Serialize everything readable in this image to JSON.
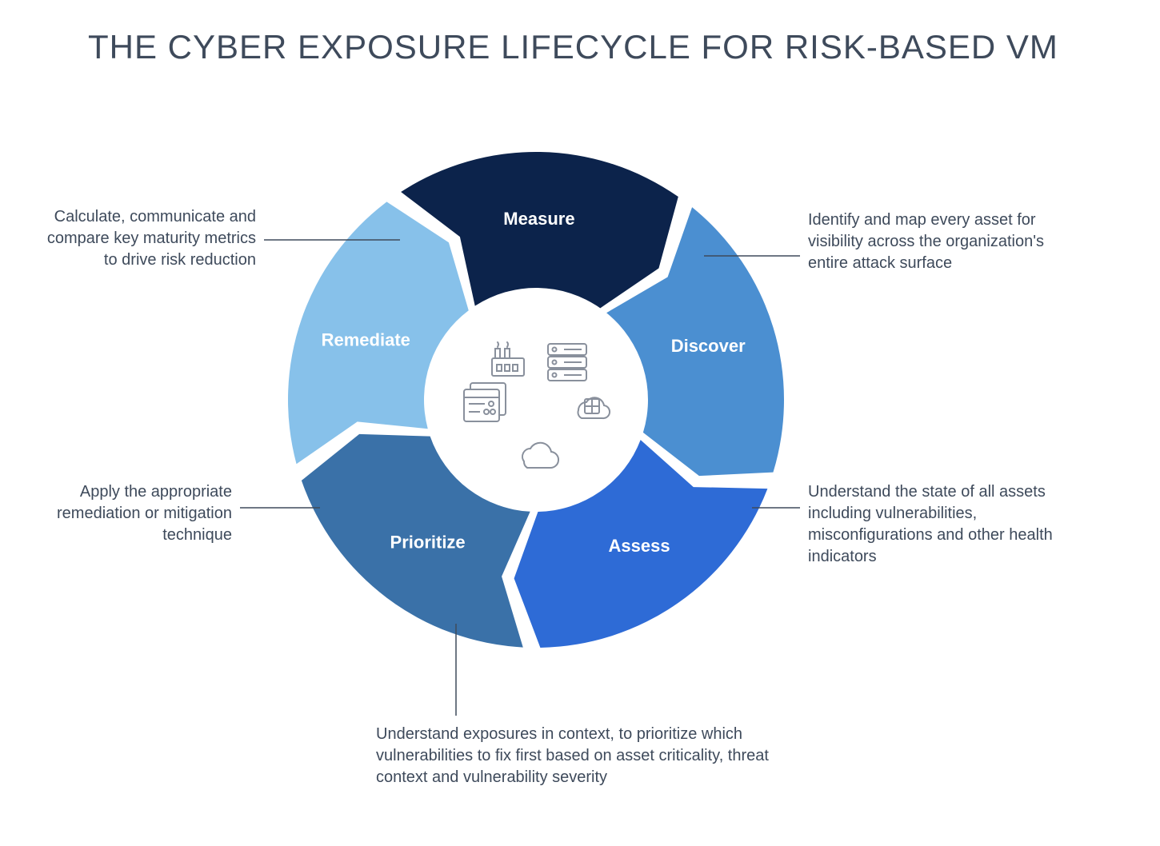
{
  "title": "THE CYBER EXPOSURE LIFECYCLE FOR RISK-BASED VM",
  "title_color": "#3e4a5b",
  "title_fontsize": 42,
  "background_color": "#ffffff",
  "diagram": {
    "type": "cycle-donut",
    "outer_radius": 310,
    "inner_radius": 140,
    "gap_deg": 4,
    "arrow_notch_deg": 8,
    "start_angle_deg": -125,
    "label_radius": 225,
    "segment_label_color": "#ffffff",
    "segment_label_fontsize": 22,
    "segment_label_weight": 700,
    "segments": [
      {
        "key": "measure",
        "label": "Measure",
        "color": "#0c234b"
      },
      {
        "key": "discover",
        "label": "Discover",
        "color": "#4b8fd1"
      },
      {
        "key": "assess",
        "label": "Assess",
        "color": "#2e6bd6"
      },
      {
        "key": "prioritize",
        "label": "Prioritize",
        "color": "#3a71a8"
      },
      {
        "key": "remediate",
        "label": "Remediate",
        "color": "#87c1ea"
      }
    ],
    "center_icon_stroke": "#89909c",
    "center_icons": [
      "factory",
      "server-rack",
      "browser-stack",
      "hybrid-cloud",
      "cloud"
    ]
  },
  "callouts": {
    "measure": "Calculate, communicate and compare key maturity metrics to drive risk reduction",
    "discover": "Identify and map every asset for visibility across the organization's entire attack surface",
    "assess": "Understand the state of all assets including vulnerabilities, misconfigurations and other health indicators",
    "prioritize": "Understand exposures in context, to prioritize which vulnerabilities to fix first based on asset criticality, threat context and vulnerability severity",
    "remediate": "Apply the appropriate remediation or mitigation technique"
  },
  "callout_style": {
    "fontsize": 20,
    "color": "#3e4a5b",
    "leader_color": "#3e4a5b"
  }
}
